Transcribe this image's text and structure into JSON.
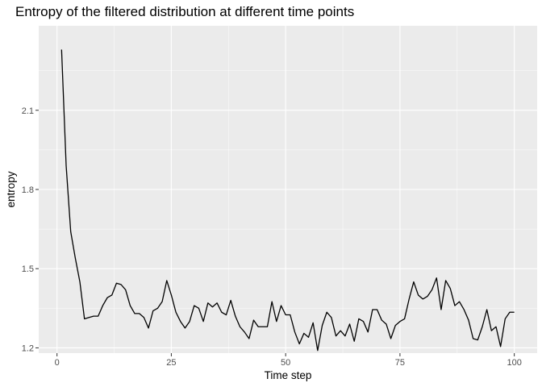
{
  "chart_data": {
    "type": "line",
    "title": "Entropy of the filtered distribution at different time points",
    "xlabel": "Time step",
    "ylabel": "entropy",
    "xlim": [
      -4,
      105
    ],
    "ylim": [
      1.18,
      2.42
    ],
    "xticks": [
      0,
      25,
      50,
      75,
      100
    ],
    "yticks": [
      1.2,
      1.5,
      1.8,
      2.1
    ],
    "ytick_labels": [
      "1.2",
      "1.5",
      "1.8",
      "2.1"
    ],
    "grid": true,
    "legend": "none",
    "colors": {
      "panel": "#ebebeb",
      "grid": "#ffffff",
      "line": "#000000"
    },
    "series": [
      {
        "x": [
          1,
          2,
          3,
          4,
          5,
          6,
          7,
          8,
          9,
          10,
          11,
          12,
          13,
          14,
          15,
          16,
          17,
          18,
          19,
          20,
          21,
          22,
          23,
          24,
          25,
          26,
          27,
          28,
          29,
          30,
          31,
          32,
          33,
          34,
          35,
          36,
          37,
          38,
          39,
          40,
          41,
          42,
          43,
          44,
          45,
          46,
          47,
          48,
          49,
          50,
          51,
          52,
          53,
          54,
          55,
          56,
          57,
          58,
          59,
          60,
          61,
          62,
          63,
          64,
          65,
          66,
          67,
          68,
          69,
          70,
          71,
          72,
          73,
          74,
          75,
          76,
          77,
          78,
          79,
          80,
          81,
          82,
          83,
          84,
          85,
          86,
          87,
          88,
          89,
          90,
          91,
          92,
          93,
          94,
          95,
          96,
          97,
          98,
          99,
          100
        ],
        "values": [
          2.33,
          1.89,
          1.64,
          1.54,
          1.45,
          1.31,
          1.315,
          1.32,
          1.32,
          1.36,
          1.39,
          1.4,
          1.445,
          1.44,
          1.42,
          1.36,
          1.33,
          1.33,
          1.315,
          1.275,
          1.34,
          1.35,
          1.375,
          1.455,
          1.4,
          1.335,
          1.3,
          1.275,
          1.3,
          1.36,
          1.35,
          1.3,
          1.37,
          1.355,
          1.37,
          1.335,
          1.325,
          1.38,
          1.32,
          1.28,
          1.26,
          1.235,
          1.305,
          1.28,
          1.28,
          1.28,
          1.375,
          1.3,
          1.36,
          1.325,
          1.325,
          1.26,
          1.215,
          1.255,
          1.24,
          1.295,
          1.19,
          1.285,
          1.335,
          1.315,
          1.245,
          1.265,
          1.245,
          1.29,
          1.225,
          1.31,
          1.3,
          1.26,
          1.345,
          1.345,
          1.305,
          1.29,
          1.235,
          1.285,
          1.3,
          1.31,
          1.385,
          1.45,
          1.4,
          1.385,
          1.395,
          1.42,
          1.465,
          1.345,
          1.455,
          1.425,
          1.36,
          1.375,
          1.345,
          1.305,
          1.235,
          1.23,
          1.28,
          1.345,
          1.265,
          1.28,
          1.205,
          1.31,
          1.335,
          1.335
        ]
      }
    ]
  }
}
